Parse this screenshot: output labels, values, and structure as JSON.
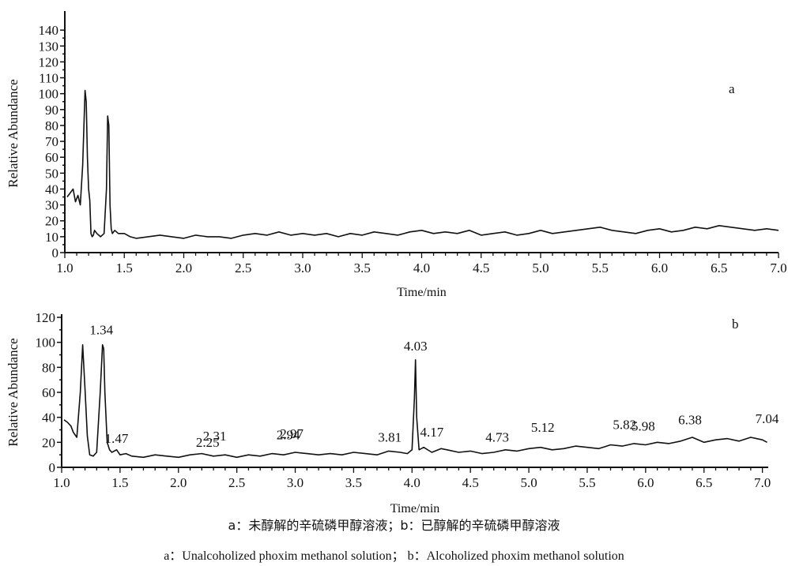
{
  "chart_data": [
    {
      "type": "line",
      "panel_label": "a",
      "xlabel": "Time/min",
      "ylabel": "Relative Abundance",
      "xlim": [
        1.0,
        7.0
      ],
      "ylim": [
        0,
        150
      ],
      "xticks": [
        "1.0",
        "1.5",
        "2.0",
        "2.5",
        "3.0",
        "3.5",
        "4.0",
        "4.5",
        "5.0",
        "5.5",
        "6.0",
        "6.5",
        "7.0"
      ],
      "yticks": [
        "0",
        "10",
        "20",
        "30",
        "40",
        "50",
        "60",
        "70",
        "80",
        "90",
        "100",
        "110",
        "120",
        "130",
        "140"
      ],
      "series": [
        {
          "x": [
            1.02,
            1.05,
            1.07,
            1.09,
            1.11,
            1.13,
            1.15,
            1.17,
            1.18,
            1.19,
            1.2,
            1.21,
            1.22,
            1.23,
            1.24,
            1.25,
            1.27,
            1.3,
            1.33,
            1.35,
            1.36,
            1.37,
            1.38,
            1.39,
            1.4,
            1.42,
            1.45,
            1.5,
            1.55,
            1.6,
            1.7,
            1.8,
            1.9,
            2.0,
            2.1,
            2.2,
            2.3,
            2.4,
            2.5,
            2.6,
            2.7,
            2.8,
            2.9,
            3.0,
            3.1,
            3.2,
            3.3,
            3.4,
            3.5,
            3.6,
            3.7,
            3.8,
            3.9,
            4.0,
            4.1,
            4.2,
            4.3,
            4.4,
            4.5,
            4.6,
            4.7,
            4.8,
            4.9,
            5.0,
            5.1,
            5.2,
            5.3,
            5.4,
            5.5,
            5.6,
            5.7,
            5.8,
            5.9,
            6.0,
            6.1,
            6.2,
            6.3,
            6.4,
            6.5,
            6.6,
            6.7,
            6.8,
            6.9,
            7.0
          ],
          "y": [
            35,
            38,
            40,
            32,
            36,
            30,
            55,
            102,
            95,
            60,
            40,
            33,
            12,
            10,
            11,
            14,
            12,
            10,
            12,
            40,
            86,
            80,
            30,
            15,
            12,
            14,
            12,
            12,
            10,
            9,
            10,
            11,
            10,
            9,
            11,
            10,
            10,
            9,
            11,
            12,
            11,
            13,
            11,
            12,
            11,
            12,
            10,
            12,
            11,
            13,
            12,
            11,
            13,
            14,
            12,
            13,
            12,
            14,
            11,
            12,
            13,
            11,
            12,
            14,
            12,
            13,
            14,
            15,
            16,
            14,
            13,
            12,
            14,
            15,
            13,
            14,
            16,
            15,
            17,
            16,
            15,
            14,
            15,
            14
          ]
        }
      ]
    },
    {
      "type": "line",
      "panel_label": "b",
      "xlabel": "Time/min",
      "ylabel": "Relative Abundance",
      "xlim": [
        1.0,
        7.05
      ],
      "ylim": [
        0,
        120
      ],
      "xticks": [
        "1.0",
        "1.5",
        "2.0",
        "2.5",
        "3.0",
        "3.5",
        "4.0",
        "4.5",
        "5.0",
        "5.5",
        "6.0",
        "6.5",
        "7.0"
      ],
      "yticks": [
        "0",
        "20",
        "40",
        "60",
        "80",
        "100",
        "120"
      ],
      "series": [
        {
          "x": [
            1.02,
            1.05,
            1.08,
            1.1,
            1.13,
            1.16,
            1.18,
            1.2,
            1.22,
            1.24,
            1.27,
            1.3,
            1.33,
            1.35,
            1.36,
            1.37,
            1.39,
            1.41,
            1.43,
            1.47,
            1.5,
            1.55,
            1.6,
            1.7,
            1.8,
            1.9,
            2.0,
            2.1,
            2.2,
            2.3,
            2.4,
            2.5,
            2.6,
            2.7,
            2.8,
            2.9,
            3.0,
            3.1,
            3.2,
            3.3,
            3.4,
            3.5,
            3.6,
            3.7,
            3.8,
            3.9,
            3.96,
            4.0,
            4.02,
            4.03,
            4.04,
            4.06,
            4.1,
            4.17,
            4.25,
            4.3,
            4.4,
            4.5,
            4.6,
            4.7,
            4.8,
            4.9,
            5.0,
            5.1,
            5.2,
            5.3,
            5.4,
            5.5,
            5.6,
            5.7,
            5.8,
            5.9,
            6.0,
            6.1,
            6.2,
            6.3,
            6.4,
            6.5,
            6.6,
            6.7,
            6.8,
            6.9,
            7.0,
            7.04
          ],
          "y": [
            38,
            36,
            33,
            28,
            24,
            60,
            98,
            62,
            25,
            10,
            9,
            12,
            60,
            98,
            95,
            60,
            20,
            14,
            12,
            14,
            10,
            11,
            9,
            8,
            10,
            9,
            8,
            10,
            11,
            9,
            10,
            8,
            10,
            9,
            11,
            10,
            12,
            11,
            10,
            11,
            10,
            12,
            11,
            10,
            13,
            12,
            11,
            14,
            55,
            86,
            40,
            14,
            16,
            12,
            15,
            14,
            12,
            13,
            11,
            12,
            14,
            13,
            15,
            16,
            14,
            15,
            17,
            16,
            15,
            18,
            17,
            19,
            18,
            20,
            19,
            21,
            24,
            20,
            22,
            23,
            21,
            24,
            22,
            20
          ]
        }
      ],
      "peak_labels": [
        {
          "x": 1.34,
          "y": 104,
          "text": "1.34"
        },
        {
          "x": 1.47,
          "y": 17,
          "text": "1.47"
        },
        {
          "x": 2.25,
          "y": 14,
          "text": "2.25"
        },
        {
          "x": 2.31,
          "y": 19,
          "text": "2.31"
        },
        {
          "x": 2.94,
          "y": 20,
          "text": "2.94"
        },
        {
          "x": 2.97,
          "y": 21,
          "text": "2.97"
        },
        {
          "x": 3.81,
          "y": 18,
          "text": "3.81"
        },
        {
          "x": 4.03,
          "y": 91,
          "text": "4.03"
        },
        {
          "x": 4.17,
          "y": 22,
          "text": "4.17"
        },
        {
          "x": 4.73,
          "y": 18,
          "text": "4.73"
        },
        {
          "x": 5.12,
          "y": 26,
          "text": "5.12"
        },
        {
          "x": 5.82,
          "y": 28,
          "text": "5.82"
        },
        {
          "x": 5.98,
          "y": 27,
          "text": "5.98"
        },
        {
          "x": 6.38,
          "y": 32,
          "text": "6.38"
        },
        {
          "x": 7.04,
          "y": 33,
          "text": "7.04"
        }
      ]
    }
  ],
  "caption": {
    "cn": "a：未醇解的辛硫磷甲醇溶液；b：已醇解的辛硫磷甲醇溶液",
    "en": "a：Unalcoholized phoxim methanol solution； b：Alcoholized phoxim methanol solution"
  }
}
